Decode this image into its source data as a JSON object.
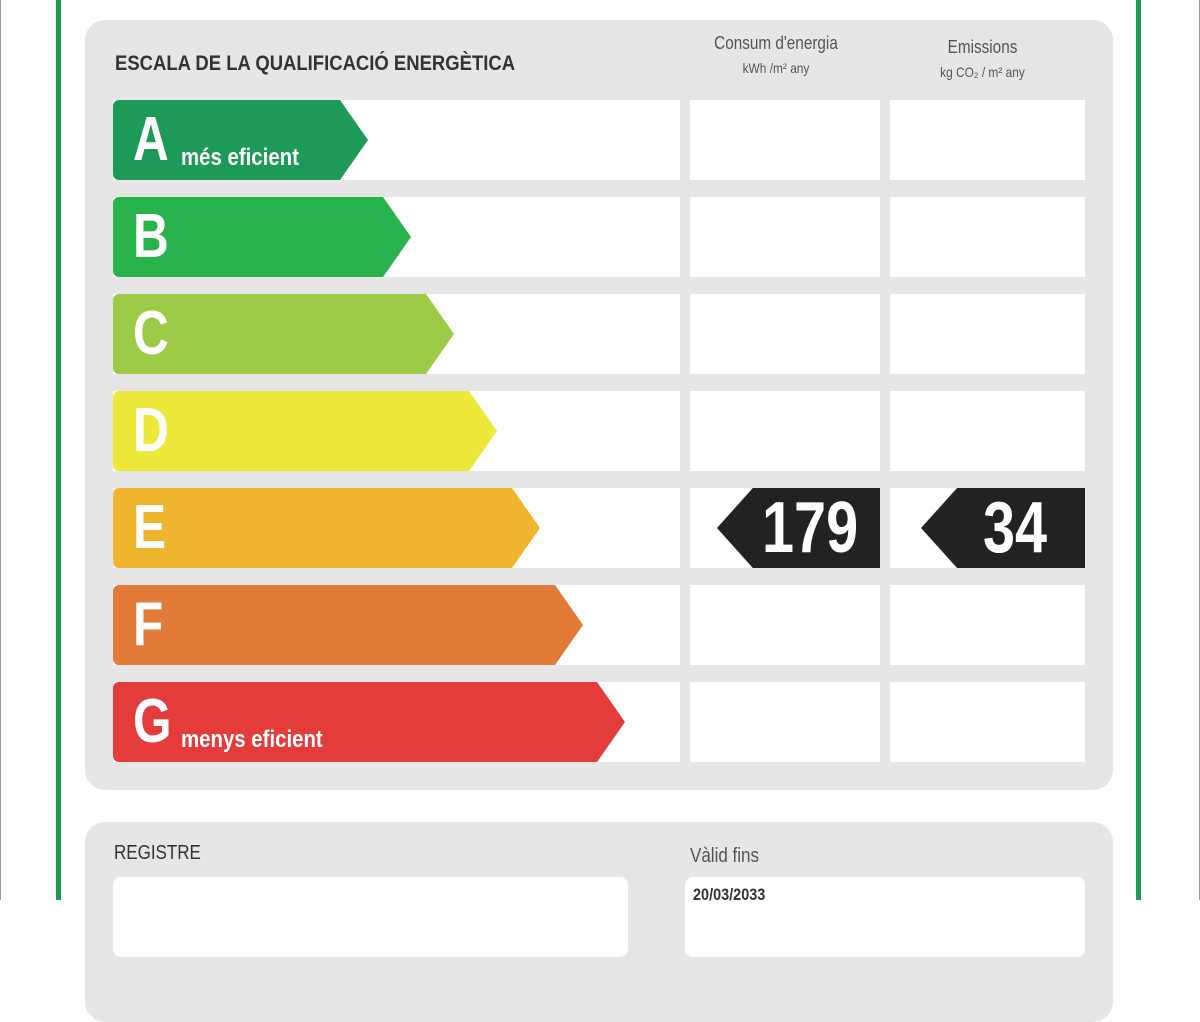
{
  "title": "ESCALA DE LA QUALIFICACIÓ ENERGÈTICA",
  "columns": {
    "energy": {
      "label": "Consum d'energia",
      "unit": "kWh /m² any"
    },
    "emissions": {
      "label": "Emissions",
      "unit": "kg CO₂ / m² any"
    }
  },
  "scale": [
    {
      "letter": "A",
      "sub": "més eficient",
      "color": "#1e9a58"
    },
    {
      "letter": "B",
      "sub": "",
      "color": "#27b24b"
    },
    {
      "letter": "C",
      "sub": "",
      "color": "#9ccb48"
    },
    {
      "letter": "D",
      "sub": "",
      "color": "#ede93a"
    },
    {
      "letter": "E",
      "sub": "",
      "color": "#f0b52f"
    },
    {
      "letter": "F",
      "sub": "",
      "color": "#e27a38"
    },
    {
      "letter": "G",
      "sub": "menys eficient",
      "color": "#e43c3a"
    }
  ],
  "rating": {
    "class": "E",
    "energy_value": "179",
    "emissions_value": "34"
  },
  "registry": {
    "label": "REGISTRE",
    "value": ""
  },
  "valid": {
    "label": "Vàlid fins",
    "value": "20/03/2033"
  }
}
